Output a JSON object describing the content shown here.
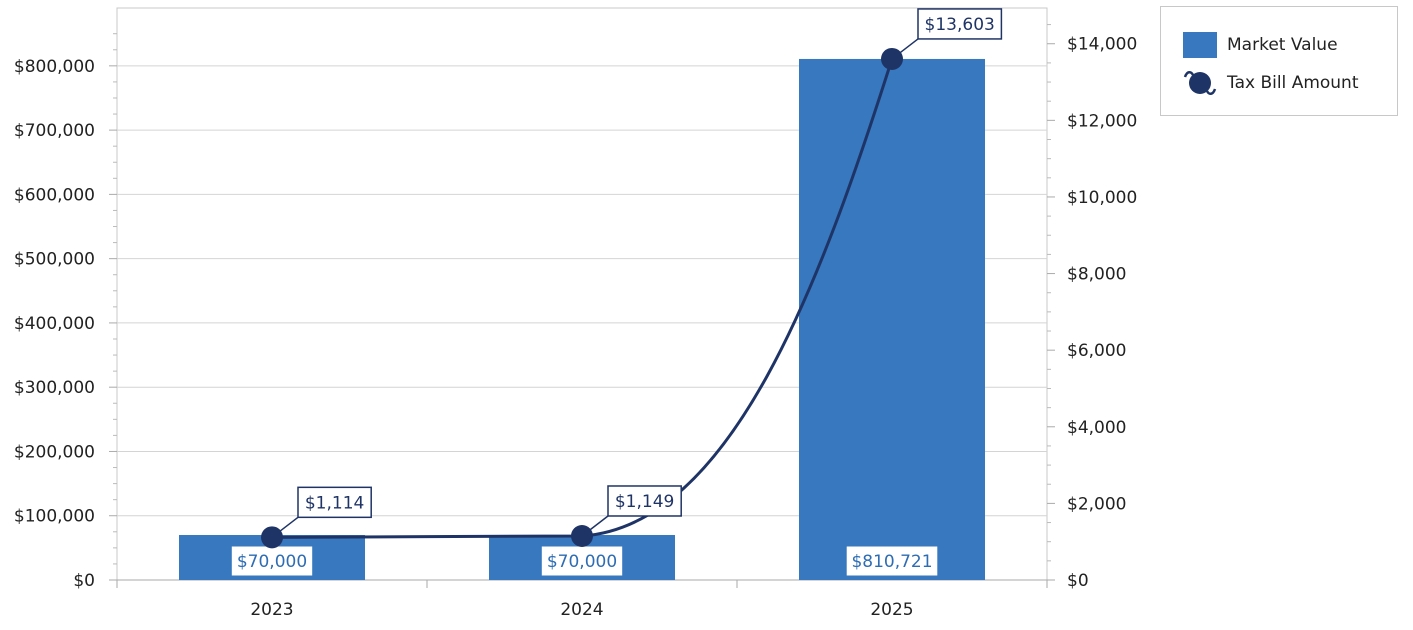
{
  "chart_data": {
    "type": "bar",
    "categories": [
      "2023",
      "2024",
      "2025"
    ],
    "series": [
      {
        "name": "Market Value",
        "kind": "bar",
        "axis": "left",
        "color": "#3778bf",
        "values": [
          70000,
          70000,
          810721
        ],
        "labels": [
          "$70,000",
          "$70,000",
          "$810,721"
        ]
      },
      {
        "name": "Tax Bill Amount",
        "kind": "line",
        "axis": "right",
        "color": "#1f3466",
        "values": [
          1114,
          1149,
          13603
        ],
        "labels": [
          "$1,114",
          "$1,149",
          "$13,603"
        ]
      }
    ],
    "y_left": {
      "ylim": [
        0,
        890000
      ],
      "ticks": [
        0,
        100000,
        200000,
        300000,
        400000,
        500000,
        600000,
        700000,
        800000
      ],
      "tick_labels": [
        "$0",
        "$100,000",
        "$200,000",
        "$300,000",
        "$400,000",
        "$500,000",
        "$600,000",
        "$700,000",
        "$800,000"
      ]
    },
    "y_right": {
      "ylim": [
        0,
        14933
      ],
      "ticks": [
        0,
        2000,
        4000,
        6000,
        8000,
        10000,
        12000,
        14000
      ],
      "tick_labels": [
        "$0",
        "$2,000",
        "$4,000",
        "$6,000",
        "$8,000",
        "$10,000",
        "$12,000",
        "$14,000"
      ]
    },
    "grid": true,
    "legend_position": "top-right",
    "title": "",
    "xlabel": "",
    "ylabel": ""
  }
}
